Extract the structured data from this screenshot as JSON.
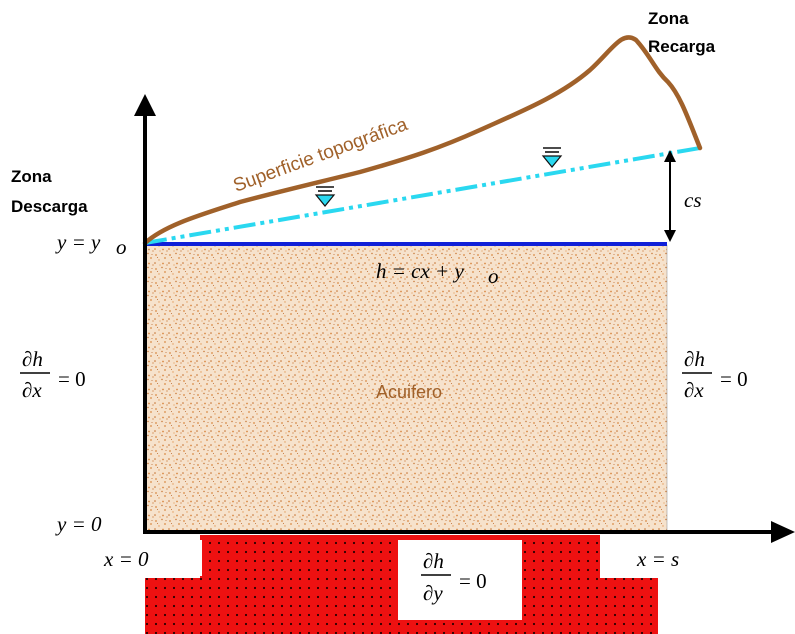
{
  "labels": {
    "zona_recarga_1": "Zona",
    "zona_recarga_2": "Recarga",
    "zona_descarga_1": "Zona",
    "zona_descarga_2": "Descarga",
    "superficie": "Superficie topográfica",
    "acuifero": "Acuifero",
    "cs": "cs",
    "y_yo": "y = y",
    "y_yo_sub": "o",
    "h_eq": "h = cx + y",
    "h_eq_sub": "o",
    "y_zero": "y = 0",
    "x_zero": "x = 0",
    "x_s": "x = s",
    "dh": "∂h",
    "dx": "∂x",
    "dy": "∂y",
    "eq_zero": "= 0"
  },
  "colors": {
    "surface": "#a0612a",
    "water_table": "#2ad8f0",
    "top_boundary": "#1020d8",
    "aquifer_fill": "#f6e2cc",
    "aquifer_speckle": "#d98a45",
    "bedrock": "#ee1111",
    "axis": "#000000"
  },
  "icons": {
    "water_level_marker": "water-level-triangle-icon"
  }
}
